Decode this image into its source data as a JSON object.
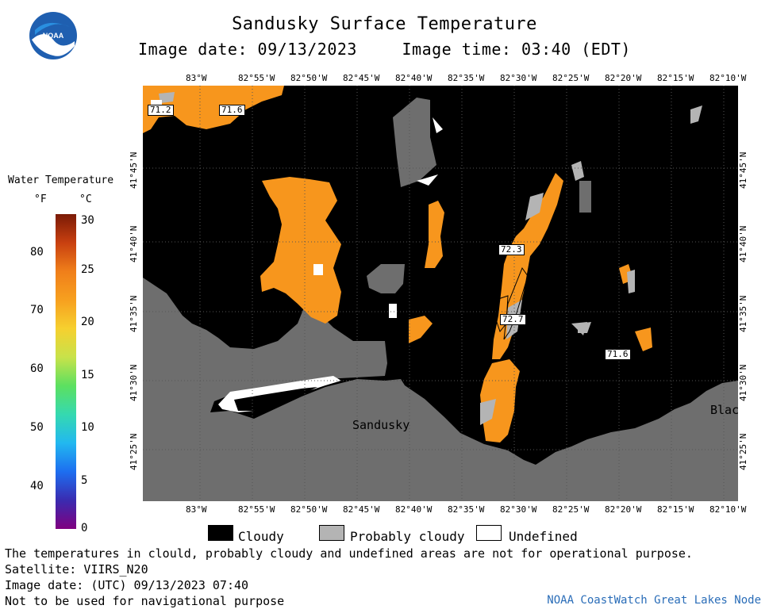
{
  "header": {
    "title": "Sandusky Surface Temperature",
    "image_date_label": "Image date: 09/13/2023",
    "image_time_label": "Image time: 03:40 (EDT)"
  },
  "logo": {
    "text": "NOAA",
    "icon": "noaa-logo-icon"
  },
  "legend": {
    "title": "Water Temperature",
    "unit_f": "°F",
    "unit_c": "°C",
    "fahrenheit_ticks": [
      "80",
      "70",
      "60",
      "50",
      "40"
    ],
    "celsius_ticks": [
      "30",
      "25",
      "20",
      "15",
      "10",
      "5",
      "0"
    ],
    "colors": [
      "#800080",
      "#3a2bb0",
      "#1d6ef0",
      "#22b8f0",
      "#35d9b0",
      "#5ce060",
      "#c8e24a",
      "#f6d02f",
      "#f7a01f",
      "#f07f1a",
      "#c84010",
      "#7a1a06"
    ]
  },
  "map": {
    "lon_labels": [
      "83°W",
      "82°55'W",
      "82°50'W",
      "82°45'W",
      "82°40'W",
      "82°35'W",
      "82°30'W",
      "82°25'W",
      "82°20'W",
      "82°15'W",
      "82°10'W"
    ],
    "lat_labels": [
      "41°45'N",
      "41°40'N",
      "41°35'N",
      "41°30'N",
      "41°25'N"
    ],
    "temp_labels": [
      "71.2",
      "71.6",
      "72.3",
      "72.7",
      "71.6"
    ],
    "place_labels": [
      "Sandusky",
      "Blac"
    ],
    "colors": {
      "cloud": "#000000",
      "land": "#6e6e6e",
      "probably_cloudy": "#b4b4b4",
      "undefined": "#ffffff",
      "warm_water": "#f7961d"
    }
  },
  "key": {
    "cloudy": "Cloudy",
    "probably_cloudy": "Probably cloudy",
    "undefined": "Undefined"
  },
  "footer": {
    "line1": "The temperatures in clould, probably cloudy and undefined areas are not for operational purpose.",
    "line2": "Satellite: VIIRS_N20",
    "line3": "Image date: (UTC) 09/13/2023  07:40",
    "line4": "Not to be used for navigational purpose",
    "credit": "NOAA CoastWatch Great Lakes Node"
  }
}
